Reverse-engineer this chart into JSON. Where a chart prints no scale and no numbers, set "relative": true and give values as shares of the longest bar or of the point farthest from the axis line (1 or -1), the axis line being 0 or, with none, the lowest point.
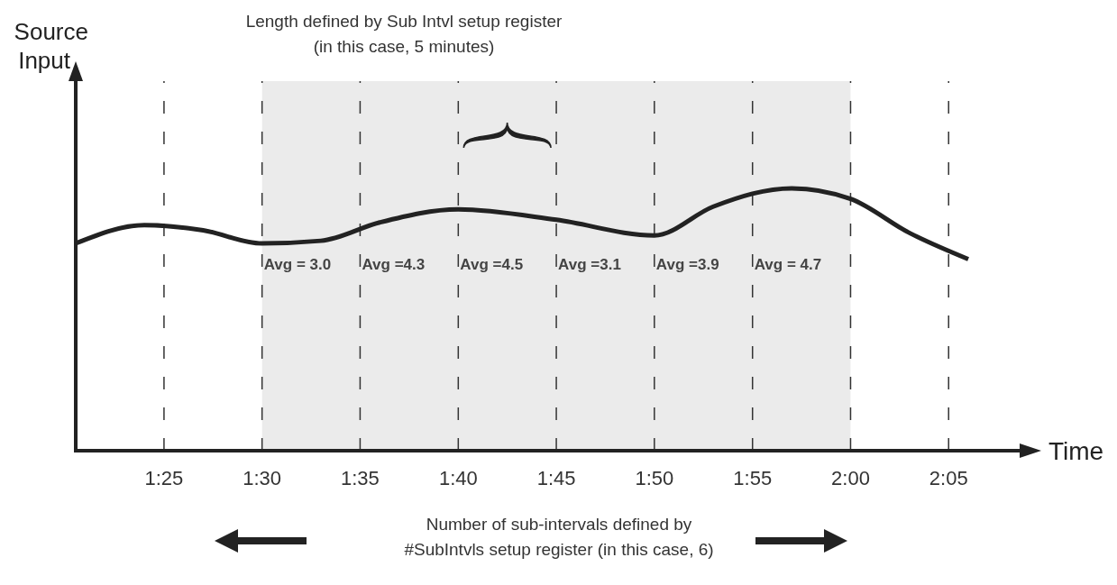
{
  "chart_data": {
    "type": "line",
    "relative": true,
    "ylabel": "Source Input",
    "xlabel": "Time",
    "annotations": [
      "Length defined by Sub Intvl setup register\n(in this case, 5 minutes)",
      "Number of sub-intervals defined by\n#SubIntvls setup register (in this case, 6)",
      {
        "text": "Avg = 3.0",
        "x": 1.5,
        "y": 0.69
      },
      {
        "text": "Avg =4.3",
        "x": 1.5833,
        "y": 0.69
      },
      {
        "text": "Avg =4.5",
        "x": 1.6667,
        "y": 0.69
      },
      {
        "text": "Avg =3.1",
        "x": 1.75,
        "y": 0.69
      },
      {
        "text": "Avg =3.9",
        "x": 1.8333,
        "y": 0.69
      },
      {
        "text": "Avg = 4.7",
        "x": 1.9167,
        "y": 0.69
      }
    ],
    "x": [
      1.3417,
      1.4,
      1.45,
      1.5,
      1.55,
      1.6,
      1.6667,
      1.75,
      1.8333,
      1.8833,
      1.95,
      2,
      2.05,
      2.1
    ],
    "series": [
      {
        "color": "#222222",
        "values": [
          0.79,
          0.86,
          0.84,
          0.79,
          0.8,
          0.87,
          0.92,
          0.88,
          0.82,
          0.93,
          1,
          0.96,
          0.83,
          0.73
        ]
      }
    ],
    "xlim": [
      1.3417,
      2.1467
    ],
    "xticks": [
      {
        "value": 1.4167,
        "label": "1:25"
      },
      {
        "value": 1.5,
        "label": "1:30"
      },
      {
        "value": 1.5833,
        "label": "1:35"
      },
      {
        "value": 1.6667,
        "label": "1:40"
      },
      {
        "value": 1.75,
        "label": "1:45"
      },
      {
        "value": 1.8333,
        "label": "1:50"
      },
      {
        "value": 1.9167,
        "label": "1:55"
      },
      {
        "value": 2,
        "label": "2:00"
      },
      {
        "value": 2.0833,
        "label": "2:05"
      }
    ],
    "ref_lines": [
      {
        "axis": "x",
        "value": 1.4167,
        "line_style": "dashed"
      },
      {
        "axis": "x",
        "value": 1.5,
        "line_style": "dashed"
      },
      {
        "axis": "x",
        "value": 1.5833,
        "line_style": "dashed"
      },
      {
        "axis": "x",
        "value": 1.6667,
        "line_style": "dashed"
      },
      {
        "axis": "x",
        "value": 1.75,
        "line_style": "dashed"
      },
      {
        "axis": "x",
        "value": 1.8333,
        "line_style": "dashed"
      },
      {
        "axis": "x",
        "value": 1.9167,
        "line_style": "dashed"
      },
      {
        "axis": "x",
        "value": 2,
        "line_style": "dashed"
      },
      {
        "axis": "x",
        "value": 2.0833,
        "line_style": "dashed"
      }
    ],
    "bands": [
      {
        "axis": "x",
        "from": 1.5,
        "to": 2,
        "color": "#ebebeb"
      }
    ],
    "marker": "none",
    "line_style": "solid"
  }
}
